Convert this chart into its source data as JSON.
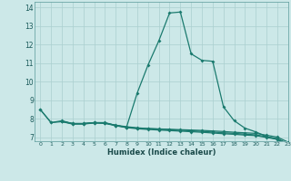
{
  "title": "",
  "xlabel": "Humidex (Indice chaleur)",
  "bg_color": "#cce8e8",
  "line_color": "#1a7a6e",
  "grid_color": "#aacfcf",
  "xlim": [
    -0.5,
    23
  ],
  "ylim": [
    6.8,
    14.3
  ],
  "xticks": [
    0,
    1,
    2,
    3,
    4,
    5,
    6,
    7,
    8,
    9,
    10,
    11,
    12,
    13,
    14,
    15,
    16,
    17,
    18,
    19,
    20,
    21,
    22,
    23
  ],
  "yticks": [
    7,
    8,
    9,
    10,
    11,
    12,
    13,
    14
  ],
  "line1_x": [
    0,
    1,
    2,
    3,
    4,
    5,
    6,
    7,
    8,
    9,
    10,
    11,
    12,
    13,
    14,
    15,
    16,
    17,
    18,
    19,
    20,
    21,
    22,
    23
  ],
  "line1_y": [
    8.5,
    7.8,
    7.9,
    7.75,
    7.75,
    7.8,
    7.8,
    7.65,
    7.55,
    9.4,
    10.9,
    12.2,
    13.7,
    13.75,
    11.5,
    11.15,
    11.1,
    8.65,
    7.9,
    7.5,
    7.3,
    7.05,
    6.9,
    6.65
  ],
  "line2_x": [
    0,
    1,
    2,
    3,
    4,
    5,
    6,
    7,
    8,
    9,
    10,
    11,
    12,
    13,
    14,
    15,
    16,
    17,
    18,
    19,
    20,
    21,
    22,
    23
  ],
  "line2_y": [
    8.5,
    7.8,
    7.85,
    7.75,
    7.75,
    7.8,
    7.78,
    7.65,
    7.55,
    7.5,
    7.48,
    7.46,
    7.44,
    7.42,
    7.4,
    7.38,
    7.35,
    7.32,
    7.28,
    7.25,
    7.22,
    7.12,
    7.02,
    6.75
  ],
  "line3_x": [
    2,
    3,
    4,
    5,
    6,
    7,
    8,
    9,
    10,
    11,
    12,
    13,
    14,
    15,
    16,
    17,
    18,
    19,
    20,
    21,
    22,
    23
  ],
  "line3_y": [
    7.85,
    7.72,
    7.72,
    7.78,
    7.76,
    7.63,
    7.53,
    7.47,
    7.43,
    7.4,
    7.37,
    7.34,
    7.31,
    7.28,
    7.24,
    7.2,
    7.17,
    7.13,
    7.1,
    7.0,
    6.9,
    6.62
  ],
  "line4_x": [
    2,
    3,
    4,
    5,
    6,
    7,
    8,
    9,
    10,
    11,
    12,
    13,
    14,
    15,
    16,
    17,
    18,
    19,
    20,
    21,
    22,
    23
  ],
  "line4_y": [
    7.88,
    7.74,
    7.74,
    7.79,
    7.77,
    7.66,
    7.58,
    7.52,
    7.48,
    7.45,
    7.42,
    7.39,
    7.36,
    7.33,
    7.29,
    7.25,
    7.22,
    7.18,
    7.14,
    7.04,
    6.94,
    6.66
  ]
}
